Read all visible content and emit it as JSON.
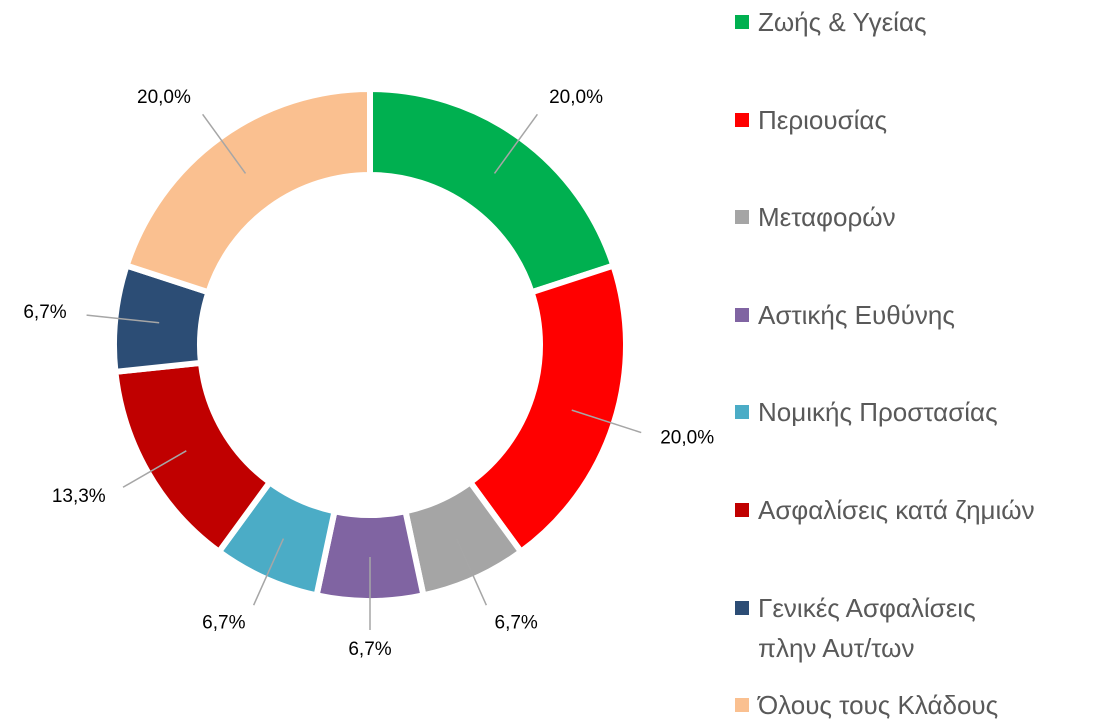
{
  "chart_data": {
    "type": "donut",
    "categories": [
      "Ζωής & Υγείας",
      "Περιουσίας",
      "Μεταφορών",
      "Αστικής Ευθύνης",
      "Νομικής Προστασίας",
      "Ασφαλίσεις κατά ζημιών",
      "Γενικές Ασφαλίσεις πλην Αυτ/των",
      "Όλους τους Κλάδους"
    ],
    "values": [
      20.0,
      20.0,
      6.7,
      6.7,
      6.7,
      13.3,
      6.7,
      20.0
    ],
    "value_labels": [
      "20,0%",
      "20,0%",
      "6,7%",
      "6,7%",
      "6,7%",
      "13,3%",
      "6,7%",
      "20,0%"
    ],
    "colors": [
      "#00b050",
      "#ff0000",
      "#a5a5a5",
      "#8064a2",
      "#4bacc6",
      "#c00000",
      "#2c4d75",
      "#fac090"
    ],
    "legend": "right"
  }
}
